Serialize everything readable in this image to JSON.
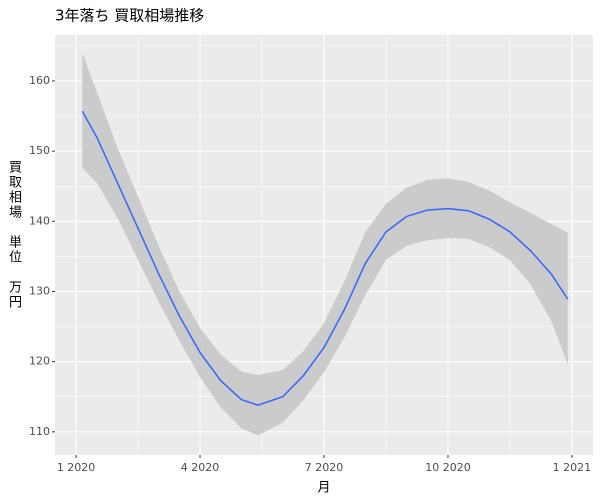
{
  "chart_data": {
    "type": "smooth",
    "title": "3年落ち 買取相場推移",
    "x_label": "月",
    "y_label": "買取相場　単位　万円",
    "xlim": [
      -0.51,
      12.51
    ],
    "xticks": [
      {
        "value": 0,
        "label": "1 2020"
      },
      {
        "value": 3,
        "label": "4 2020"
      },
      {
        "value": 6,
        "label": "7 2020"
      },
      {
        "value": 9,
        "label": "10 2020"
      },
      {
        "value": 12,
        "label": "1 2021"
      }
    ],
    "ylim": [
      106.7,
      166.55
    ],
    "yticks": [
      110,
      120,
      130,
      140,
      150,
      160
    ],
    "grid": true,
    "series": [
      {
        "color": "#3366ff",
        "band_color": "#cbcbcb",
        "x": [
          0.15,
          0.5,
          1,
          1.5,
          2,
          2.5,
          3,
          3.5,
          4,
          4.4,
          5,
          5.5,
          6,
          6.5,
          7,
          7.5,
          8,
          8.5,
          9,
          9.5,
          10,
          10.5,
          11,
          11.5,
          11.9
        ],
        "values": [
          155.7,
          152.0,
          145.5,
          139.0,
          132.5,
          126.5,
          121.3,
          117.3,
          114.6,
          113.8,
          115.0,
          118.0,
          122.0,
          127.5,
          134.0,
          138.5,
          140.7,
          141.6,
          141.8,
          141.5,
          140.3,
          138.5,
          135.8,
          132.5,
          128.9
        ],
        "lower": [
          147.6,
          145.5,
          140.5,
          134.5,
          128.5,
          123,
          117.8,
          113.5,
          110.5,
          109.5,
          111.3,
          114.5,
          118.5,
          123.5,
          129.5,
          134.5,
          136.5,
          137.3,
          137.6,
          137.5,
          136.3,
          134.5,
          131.0,
          125.8,
          119.6
        ],
        "upper": [
          164.0,
          158.5,
          150.5,
          143.5,
          136.5,
          130,
          124.8,
          121.0,
          118.6,
          118.1,
          118.8,
          121.5,
          125.5,
          131.5,
          138.5,
          142.5,
          144.8,
          145.9,
          146.1,
          145.6,
          144.4,
          142.7,
          141.2,
          139.6,
          138.4
        ]
      }
    ]
  }
}
